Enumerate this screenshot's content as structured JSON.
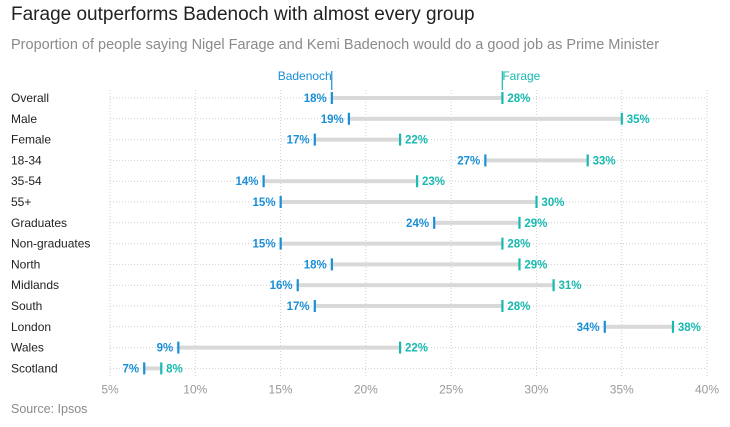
{
  "title": "Farage outperforms Badenoch with almost every group",
  "subtitle": "Proportion of people saying Nigel Farage and Kemi Badenoch would do a good job as Prime Minister",
  "source": "Source: Ipsos",
  "colors": {
    "badenoch": "#1a8fd6",
    "farage": "#17b9b0",
    "connector": "#d9d9d9",
    "grid": "#cfcfcf"
  },
  "chart_data": {
    "type": "dot",
    "title": "Farage outperforms Badenoch with almost every group",
    "subtitle": "Proportion of people saying Nigel Farage and Kemi Badenoch would do a good job as Prime Minister",
    "xlim": [
      5,
      40
    ],
    "xticks": [
      5,
      10,
      15,
      20,
      25,
      30,
      35,
      40
    ],
    "tick_suffix": "%",
    "grid": true,
    "legend": "inline-top",
    "categories": [
      "Overall",
      "Male",
      "Female",
      "18-34",
      "35-54",
      "55+",
      "Graduates",
      "Non-graduates",
      "North",
      "Midlands",
      "South",
      "London",
      "Wales",
      "Scotland"
    ],
    "series": [
      {
        "name": "Badenoch",
        "values": [
          18,
          19,
          17,
          27,
          14,
          15,
          24,
          15,
          18,
          16,
          17,
          34,
          9,
          7
        ]
      },
      {
        "name": "Farage",
        "values": [
          28,
          35,
          22,
          33,
          23,
          30,
          29,
          28,
          29,
          31,
          28,
          38,
          22,
          8
        ]
      }
    ]
  }
}
